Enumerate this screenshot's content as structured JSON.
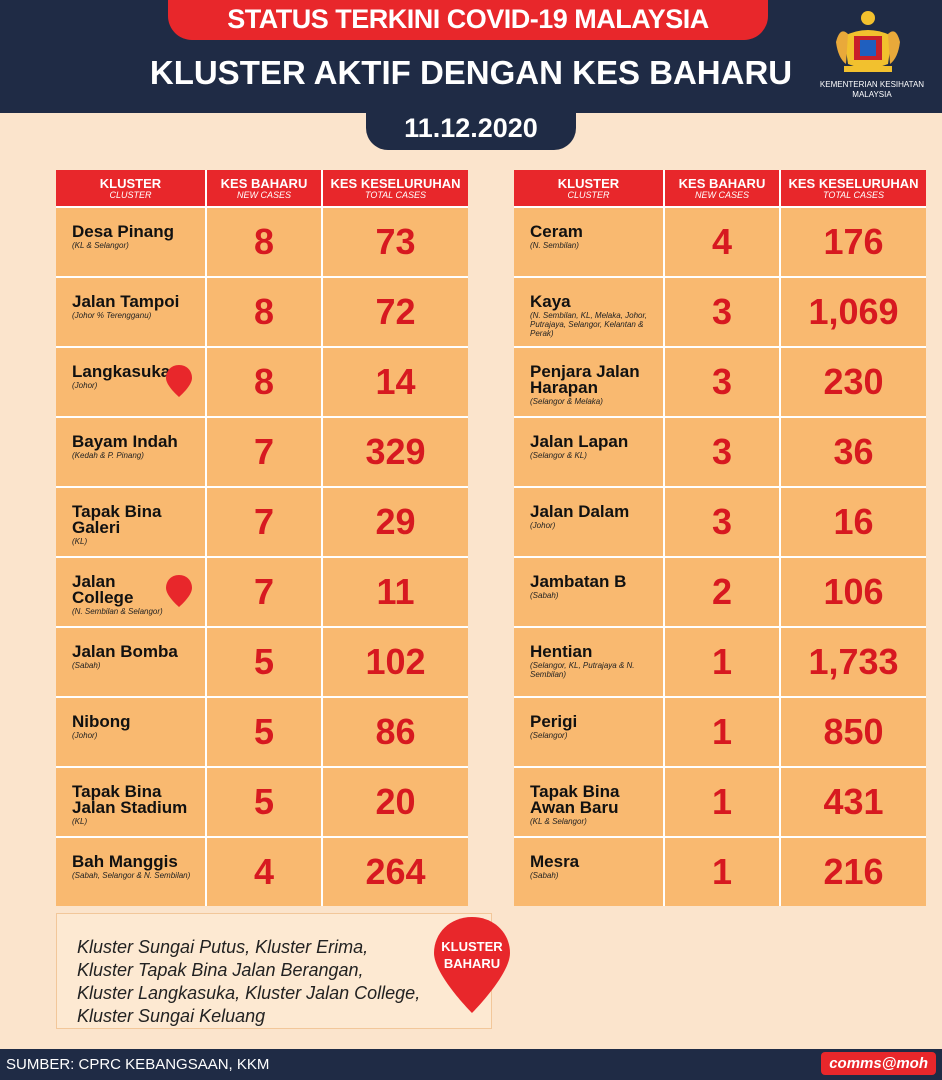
{
  "header": {
    "title": "STATUS TERKINI COVID-19 MALAYSIA",
    "subtitle": "KLUSTER AKTIF DENGAN KES BAHARU",
    "ministry_line1": "KEMENTERIAN KESIHATAN",
    "ministry_line2": "MALAYSIA",
    "date": "11.12.2020"
  },
  "columns": {
    "cluster": "KLUSTER",
    "cluster_sub": "CLUSTER",
    "new": "KES BAHARU",
    "new_sub": "NEW CASES",
    "total": "KES KESELURUHAN",
    "total_sub": "TOTAL CASES"
  },
  "badge_text": {
    "line1": "KLUSTER",
    "line2": "BAHARU"
  },
  "left_table": [
    {
      "name": "Desa Pinang",
      "location": "(KL & Selangor)",
      "new": "8",
      "total": "73"
    },
    {
      "name": "Jalan Tampoi",
      "location": "(Johor % Terengganu)",
      "new": "8",
      "total": "72"
    },
    {
      "name": "Langkasuka",
      "location": "(Johor)",
      "new": "8",
      "total": "14"
    },
    {
      "name": "Bayam Indah",
      "location": "(Kedah & P. Pinang)",
      "new": "7",
      "total": "329"
    },
    {
      "name": "Tapak Bina Galeri",
      "location": "(KL)",
      "new": "7",
      "total": "29"
    },
    {
      "name": "Jalan College",
      "location": "(N. Sembilan & Selangor)",
      "new": "7",
      "total": "11"
    },
    {
      "name": "Jalan Bomba",
      "location": "(Sabah)",
      "new": "5",
      "total": "102"
    },
    {
      "name": "Nibong",
      "location": "(Johor)",
      "new": "5",
      "total": "86"
    },
    {
      "name": "Tapak Bina Jalan Stadium",
      "location": "(KL)",
      "new": "5",
      "total": "20"
    },
    {
      "name": "Bah Manggis",
      "location": "(Sabah, Selangor & N. Sembilan)",
      "new": "4",
      "total": "264"
    }
  ],
  "right_table": [
    {
      "name": "Ceram",
      "location": "(N. Sembilan)",
      "new": "4",
      "total": "176"
    },
    {
      "name": "Kaya",
      "location": "(N. Sembilan, KL, Melaka, Johor, Putrajaya, Selangor, Kelantan & Perak)",
      "new": "3",
      "total": "1,069"
    },
    {
      "name": "Penjara Jalan Harapan",
      "location": "(Selangor & Melaka)",
      "new": "3",
      "total": "230"
    },
    {
      "name": "Jalan Lapan",
      "location": "(Selangor & KL)",
      "new": "3",
      "total": "36"
    },
    {
      "name": "Jalan Dalam",
      "location": "(Johor)",
      "new": "3",
      "total": "16"
    },
    {
      "name": "Jambatan B",
      "location": "(Sabah)",
      "new": "2",
      "total": "106"
    },
    {
      "name": "Hentian",
      "location": "(Selangor, KL, Putrajaya & N. Sembilan)",
      "new": "1",
      "total": "1,733"
    },
    {
      "name": "Perigi",
      "location": "(Selangor)",
      "new": "1",
      "total": "850"
    },
    {
      "name": "Tapak Bina Awan Baru",
      "location": "(KL & Selangor)",
      "new": "1",
      "total": "431"
    },
    {
      "name": "Mesra",
      "location": "(Sabah)",
      "new": "1",
      "total": "216"
    }
  ],
  "note": {
    "line1": "Kluster Sungai Putus, Kluster Erima,",
    "line2": "Kluster Tapak Bina Jalan Berangan,",
    "line3": "Kluster Langkasuka, Kluster Jalan College,",
    "line4": "Kluster Sungai Keluang"
  },
  "footer": {
    "source": "SUMBER: CPRC KEBANGSAAN, KKM",
    "brand": "comms@moh"
  },
  "colors": {
    "navy": "#1f2b45",
    "red": "#e8272b",
    "cell": "#f9b970",
    "background": "#fbe4cc"
  }
}
